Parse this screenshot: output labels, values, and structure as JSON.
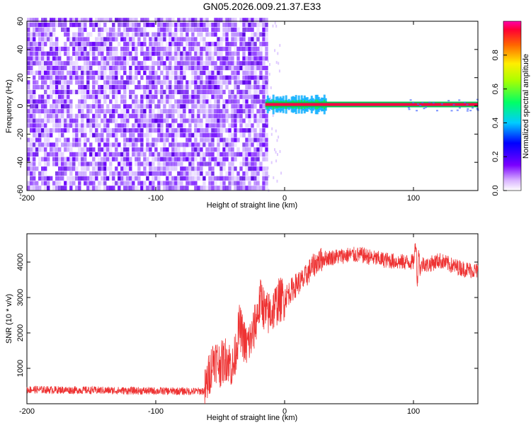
{
  "title": "GN05.2026.009.21.37.E33",
  "chart_data": [
    {
      "type": "heatmap",
      "xlabel": "Height of straight line (km)",
      "ylabel": "Frequency (Hz)",
      "xlim": [
        -200,
        150
      ],
      "ylim": [
        -60,
        60
      ],
      "xticks": [
        -200,
        -100,
        0,
        100
      ],
      "yticks": [
        60,
        40,
        20,
        0,
        -20,
        -40,
        -60
      ],
      "colorbar": {
        "label": "Normalized spectral amplitude",
        "range": [
          0,
          1
        ],
        "ticks": [
          0.0,
          0.2,
          0.4,
          0.6,
          0.8
        ]
      },
      "noise_region_x": [
        -200,
        -15
      ],
      "carrier": {
        "x_start": -15,
        "x_end": 150,
        "frequency": 1,
        "peak_amplitude": 1.0
      }
    },
    {
      "type": "line",
      "xlabel": "Height of straight line (km)",
      "ylabel": "SNR (10 * v/v)",
      "xlim": [
        -200,
        150
      ],
      "ylim": [
        0,
        4800
      ],
      "xticks": [
        -200,
        -100,
        0,
        100
      ],
      "yticks": [
        1000,
        2000,
        3000,
        4000
      ],
      "color": "#ee3333",
      "series": [
        {
          "x": [
            -200,
            -150,
            -100,
            -70,
            -62,
            -58,
            -55,
            -50,
            -45,
            -40,
            -35,
            -30,
            -25,
            -22,
            -18,
            -15,
            -10,
            -5,
            0,
            5,
            10,
            15,
            20,
            25,
            30,
            40,
            50,
            60,
            70,
            80,
            90,
            100,
            102,
            103,
            104,
            105,
            108,
            110,
            120,
            130,
            140,
            150
          ],
          "y": [
            400,
            380,
            360,
            350,
            360,
            900,
            1300,
            1100,
            1300,
            1000,
            2200,
            1600,
            1900,
            2400,
            3000,
            2500,
            2600,
            2900,
            3000,
            3200,
            3400,
            3500,
            3800,
            4000,
            4100,
            4150,
            4200,
            4200,
            4100,
            4050,
            4000,
            4000,
            4600,
            3300,
            4400,
            3800,
            4000,
            3900,
            4050,
            3900,
            3800,
            3750
          ]
        }
      ]
    }
  ]
}
